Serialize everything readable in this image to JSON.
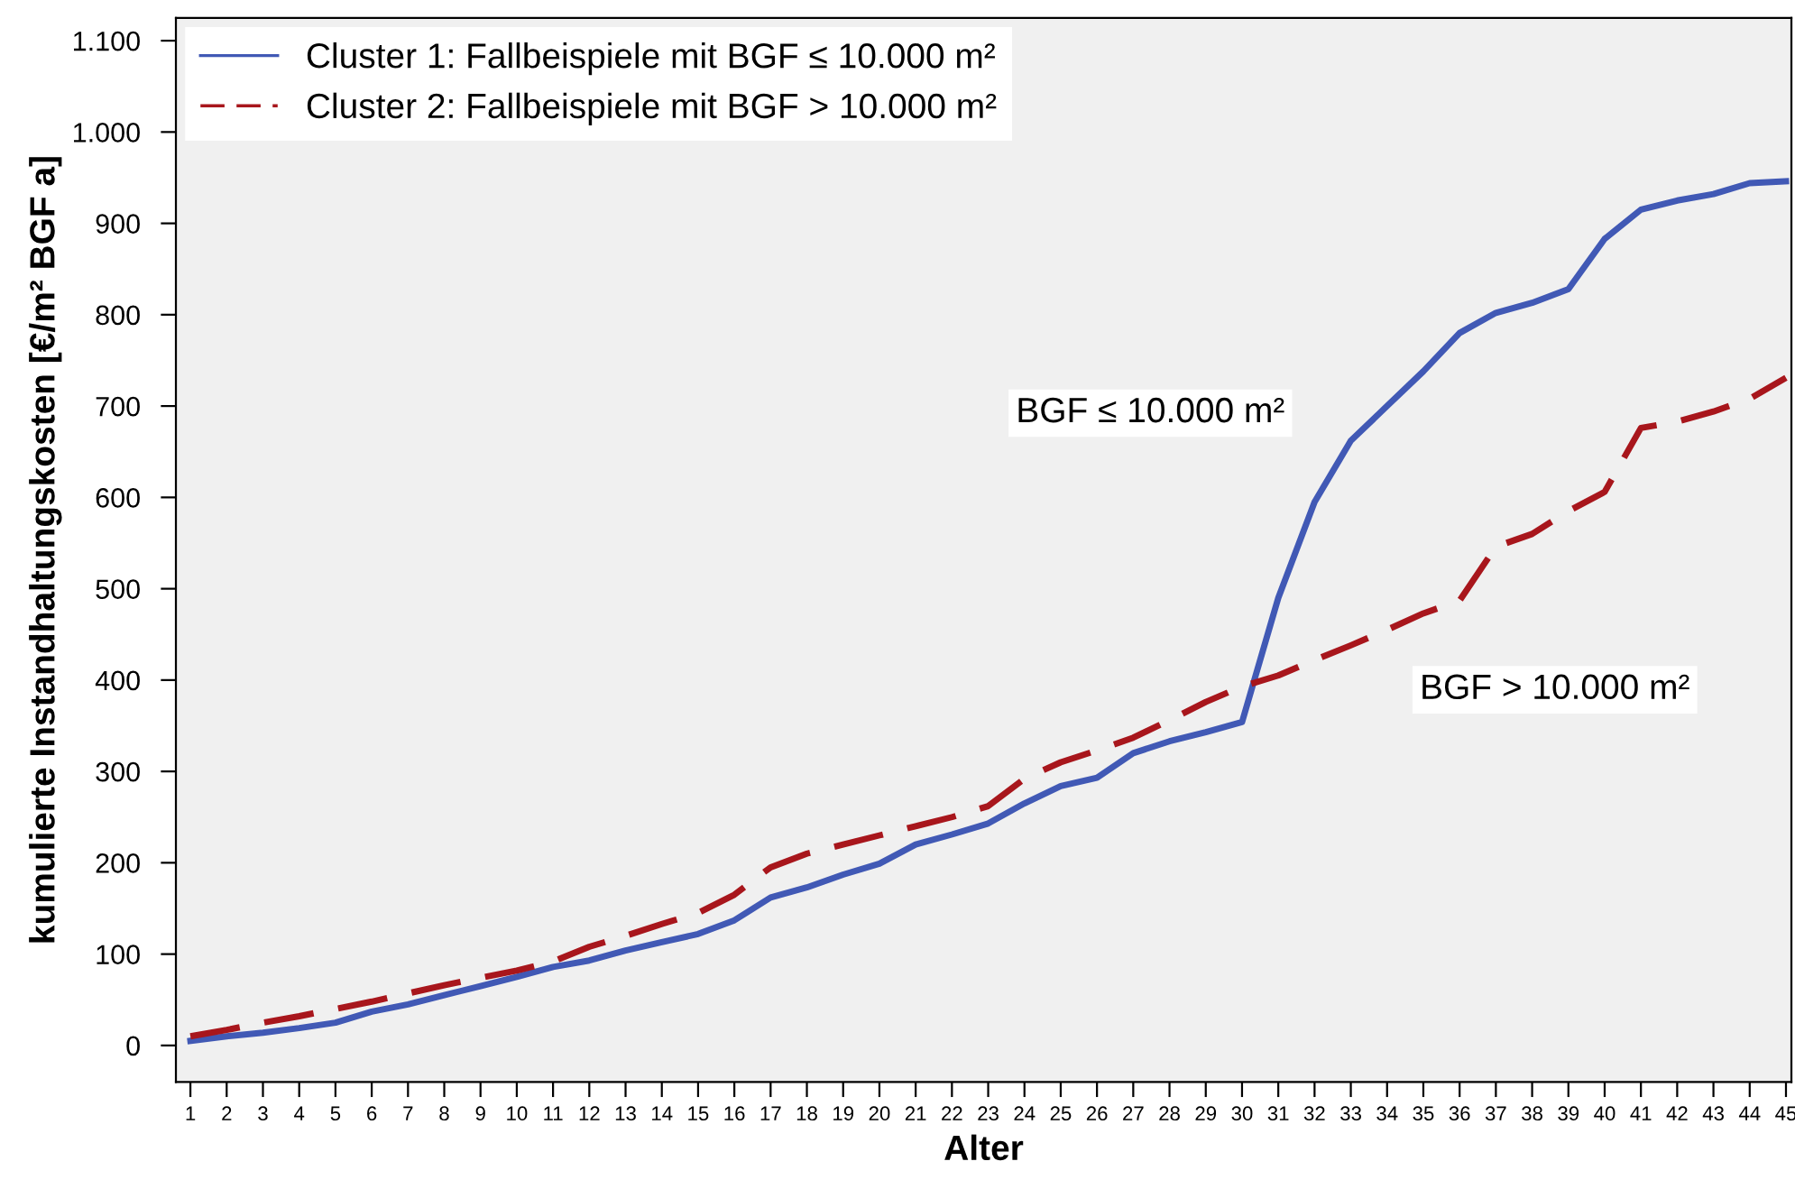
{
  "chart_data": {
    "type": "line",
    "xlabel": "Alter",
    "ylabel": "kumulierte Instandhaltungskosten [€/m² BGF a]",
    "categories": [
      "1",
      "2",
      "3",
      "4",
      "5",
      "6",
      "7",
      "8",
      "9",
      "10",
      "11",
      "12",
      "13",
      "14",
      "15",
      "16",
      "17",
      "18",
      "19",
      "20",
      "21",
      "22",
      "23",
      "24",
      "25",
      "26",
      "27",
      "28",
      "29",
      "30",
      "31",
      "32",
      "33",
      "34",
      "35",
      "36",
      "37",
      "38",
      "39",
      "40",
      "41",
      "42",
      "43",
      "44",
      "45"
    ],
    "series": [
      {
        "name": "Cluster 1: Fallbeispiele mit BGF ≤ 10.000 m²",
        "color": "#4159b5",
        "line_style": "solid",
        "values": [
          5,
          10,
          14,
          19,
          25,
          37,
          45,
          55,
          65,
          75,
          86,
          93,
          104,
          113,
          122,
          137,
          162,
          173,
          187,
          199,
          220,
          231,
          243,
          265,
          284,
          293,
          320,
          333,
          343,
          354,
          490,
          595,
          662,
          700,
          738,
          780,
          802,
          813,
          828,
          883,
          915,
          925,
          932,
          944,
          946
        ]
      },
      {
        "name": "Cluster 2: Fallbeispiele mit BGF > 10.000 m²",
        "color": "#a8161c",
        "line_style": "dashed",
        "values": [
          10,
          17,
          25,
          32,
          40,
          48,
          57,
          66,
          74,
          82,
          92,
          108,
          120,
          133,
          145,
          165,
          195,
          210,
          220,
          230,
          240,
          250,
          262,
          292,
          310,
          323,
          337,
          356,
          376,
          393,
          405,
          422,
          438,
          455,
          473,
          487,
          546,
          560,
          585,
          606,
          676,
          683,
          694,
          708,
          731
        ]
      }
    ],
    "annotations": [
      "BGF ≤ 10.000 m²",
      "BGF > 10.000 m²"
    ],
    "ylim": [
      -40,
      1125
    ],
    "yticks": [
      0,
      100,
      200,
      300,
      400,
      500,
      600,
      700,
      800,
      900,
      {
        "value": 1000,
        "label": "1.000"
      },
      {
        "value": 1100,
        "label": "1.100"
      }
    ],
    "legend": "top left",
    "grid": false,
    "marker": "none"
  }
}
